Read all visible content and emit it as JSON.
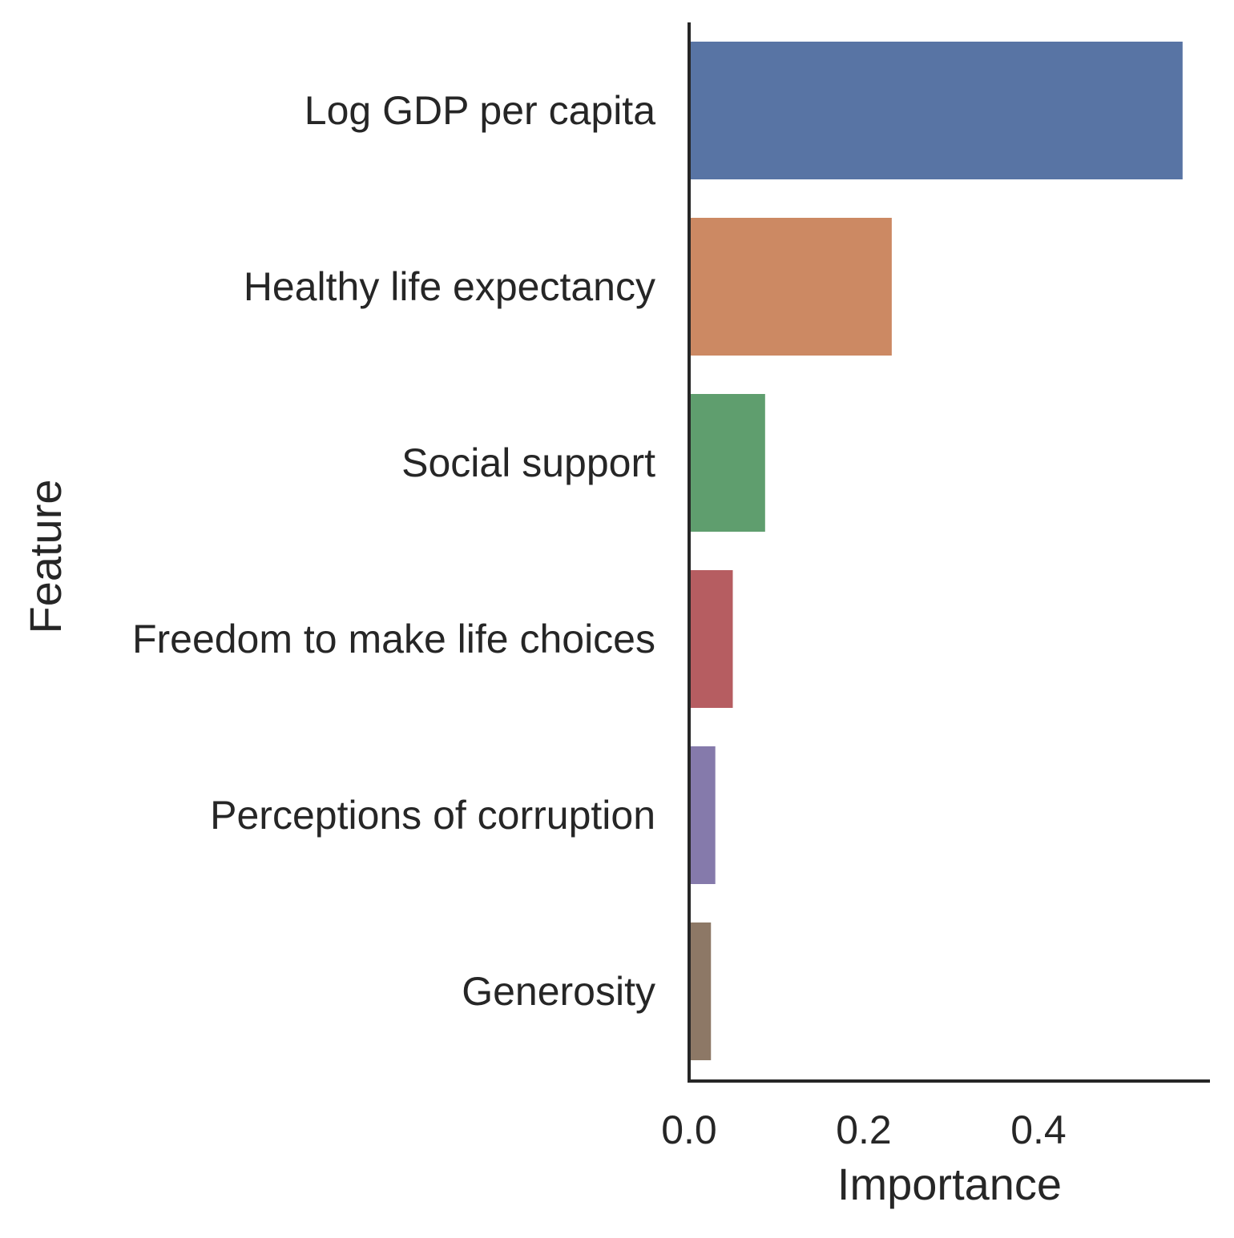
{
  "chart_data": {
    "type": "bar",
    "orientation": "horizontal",
    "title": "",
    "xlabel": "Importance",
    "ylabel": "Feature",
    "categories": [
      "Log GDP per capita",
      "Healthy life expectancy",
      "Social support",
      "Freedom to make life choices",
      "Perceptions of corruption",
      "Generosity"
    ],
    "values": [
      0.565,
      0.232,
      0.087,
      0.05,
      0.03,
      0.025
    ],
    "colors": [
      "#5874a4",
      "#cc8963",
      "#5f9e6e",
      "#b65d61",
      "#857aab",
      "#8d7866"
    ],
    "xlim": [
      0,
      0.6
    ],
    "xticks": [
      {
        "value": 0.0,
        "label": "0.0"
      },
      {
        "value": 0.2,
        "label": "0.2"
      },
      {
        "value": 0.4,
        "label": "0.4"
      }
    ],
    "grid": false,
    "legend": "none",
    "spines": "left-bottom"
  }
}
